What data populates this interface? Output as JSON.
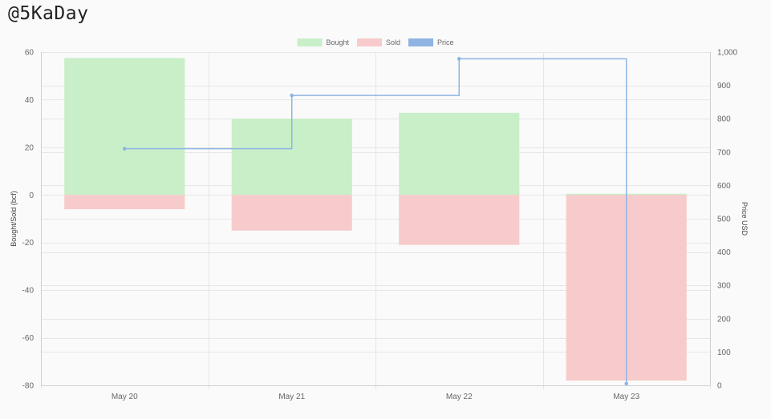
{
  "header": {
    "handle": "@5KaDay"
  },
  "chart_data": {
    "type": "bar",
    "categories": [
      "May 20",
      "May 21",
      "May 22",
      "May 23"
    ],
    "series": [
      {
        "name": "Bought",
        "axis": "left",
        "values": [
          57.5,
          32,
          34.5,
          0.5
        ],
        "color": "#c8efc8"
      },
      {
        "name": "Sold",
        "axis": "left",
        "values": [
          -6,
          -15,
          -21,
          -78
        ],
        "color": "#f7cbcb"
      },
      {
        "name": "Price",
        "type": "line",
        "step": true,
        "axis": "right",
        "values": [
          710,
          870,
          980,
          5
        ],
        "color": "#8fb4e3"
      }
    ],
    "ylabel": "Bought/Sold (bcf)",
    "ylim": [
      -80,
      60
    ],
    "yticks": [
      -80,
      -60,
      -40,
      -20,
      0,
      20,
      40,
      60
    ],
    "y2label": "Price USD",
    "y2lim": [
      0,
      1000
    ],
    "y2ticks": [
      "0",
      "100",
      "200",
      "300",
      "400",
      "500",
      "600",
      "700",
      "800",
      "900",
      "1,000"
    ],
    "legend_position": "top-center",
    "grid": true
  }
}
